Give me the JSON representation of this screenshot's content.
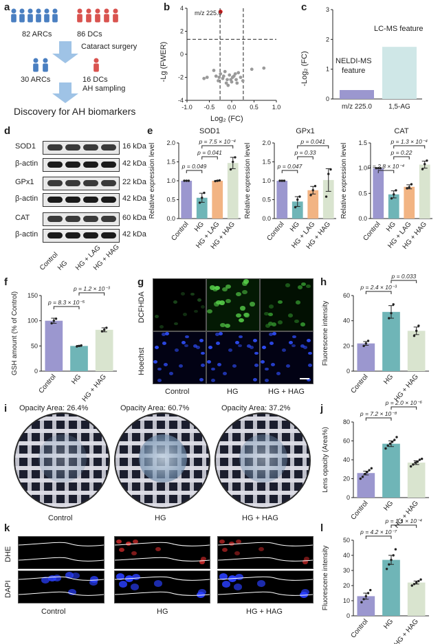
{
  "panel_labels": {
    "a": "a",
    "b": "b",
    "c": "c",
    "d": "d",
    "e": "e",
    "f": "f",
    "g": "g",
    "h": "h",
    "i": "i",
    "j": "j",
    "k": "k",
    "l": "l"
  },
  "panel_a": {
    "arcs_count": "82 ARCs",
    "dcs_count": "86 DCs",
    "surgery": "Cataract surgery",
    "arcs_selected": "30 ARCs",
    "dcs_selected": "16 DCs",
    "sampling": "AH sampling",
    "discovery": "Discovery for AH biomarkers",
    "arc_color": "#4a7fc1",
    "dc_color": "#d9534f"
  },
  "panel_b": {
    "annotation": "m/z 225.0",
    "ylabel": "-Lg (FWER)",
    "xlabel": "Log₂ (FC)"
  },
  "panel_c": {
    "ylabel": "-Log₂ (FC)",
    "bar1_label": "NELDI-MS\nfeature",
    "bar1_line1": "NELDI-MS",
    "bar1_line2": "feature",
    "bar2_label": "LC-MS feature",
    "categories": [
      "m/z 225.0",
      "1,5-AG"
    ]
  },
  "panel_d": {
    "blots": [
      "SOD1",
      "β-actin",
      "GPx1",
      "β-actin",
      "CAT",
      "β-actin"
    ],
    "kda": [
      "16 kDa",
      "42 kDa",
      "22 kDa",
      "42 kDa",
      "60 kDa",
      "42 kDa"
    ],
    "groups": [
      "Control",
      "HG",
      "HG + LAG",
      "HG + HAG"
    ]
  },
  "panel_e": {
    "ylabel": "Relative expression level",
    "titles": [
      "SOD1",
      "GPx1",
      "CAT"
    ],
    "pvals": [
      [
        "p = 0.049",
        "p = 0.041",
        "p = 7.5 × 10⁻⁴"
      ],
      [
        "p = 0.047",
        "p = 0.33",
        "p = 0.041"
      ],
      [
        "p = 2.8 × 10⁻⁴",
        "p = 0.22",
        "p = 1.3 × 10⁻⁴"
      ]
    ]
  },
  "panel_f": {
    "ylabel": "GSH amount (% of Control)",
    "p1": "p = 8.3 × 10⁻⁵",
    "p2": "p = 1.2 × 10⁻³"
  },
  "panel_g": {
    "row1": "DCFHDA",
    "row2": "Hoechst",
    "cols": [
      "Control",
      "HG",
      "HG + HAG"
    ]
  },
  "panel_h": {
    "ylabel": "Fluorescene intensity",
    "p1": "p = 2.4 × 10⁻³",
    "p2": "p = 0.033"
  },
  "panel_i": {
    "titles": [
      "Opacity Area: 26.4%",
      "Opacity Area: 60.7%",
      "Opacity Area: 37.2%"
    ],
    "cols": [
      "Control",
      "HG",
      "HG + HAG"
    ]
  },
  "panel_j": {
    "ylabel": "Lens opacity (Area%)",
    "p1": "p = 7.2 × 10⁻⁸",
    "p2": "p = 2.0 × 10⁻⁶"
  },
  "panel_k": {
    "row1": "DHE",
    "row2": "DAPI",
    "cols": [
      "Control",
      "HG",
      "HG + HAG"
    ]
  },
  "panel_l": {
    "ylabel": "Fluorescene intensity",
    "p1": "p = 4.2 × 10⁻⁷",
    "p2": "p = 1.1 × 10⁻⁴"
  },
  "chart_data": [
    {
      "id": "b",
      "type": "scatter",
      "xlabel": "Log₂ (FC)",
      "ylabel": "-Lg (FWER)",
      "xlim": [
        -1.0,
        1.0
      ],
      "ylim": [
        -4,
        4
      ],
      "xticks": [
        -1.0,
        -0.5,
        0.0,
        0.5,
        1.0
      ],
      "yticks": [
        -4,
        -2,
        0,
        2,
        4
      ],
      "points": [
        [
          -0.25,
          3.7
        ],
        [
          -0.62,
          -2.1
        ],
        [
          -0.55,
          -2.0
        ],
        [
          -0.4,
          -1.4
        ],
        [
          -0.35,
          -1.9
        ],
        [
          -0.3,
          -2.3
        ],
        [
          -0.25,
          -1.7
        ],
        [
          -0.2,
          -2.1
        ],
        [
          -0.15,
          -1.5
        ],
        [
          -0.1,
          -2.2
        ],
        [
          -0.05,
          -1.8
        ],
        [
          0.0,
          -2.4
        ],
        [
          0.05,
          -1.9
        ],
        [
          0.1,
          -2.2
        ],
        [
          0.15,
          -1.6
        ],
        [
          0.2,
          -2.0
        ],
        [
          -0.12,
          -2.5
        ],
        [
          0.02,
          -2.0
        ],
        [
          -0.28,
          -2.0
        ],
        [
          0.08,
          -1.7
        ],
        [
          -0.18,
          -1.9
        ],
        [
          0.12,
          -2.5
        ],
        [
          0.25,
          -2.3
        ],
        [
          0.45,
          -1.3
        ],
        [
          0.72,
          -1.2
        ],
        [
          -0.08,
          -2.7
        ],
        [
          -0.02,
          -2.2
        ]
      ],
      "highlight": {
        "x": -0.25,
        "y": 3.7,
        "color": "#e02020"
      },
      "hlines": [
        1.3
      ],
      "vlines": [
        -0.26,
        0.26
      ]
    },
    {
      "id": "c",
      "type": "bar",
      "categories": [
        "m/z 225.0",
        "1,5-AG"
      ],
      "values": [
        0.3,
        1.75
      ],
      "ylim": [
        0,
        3
      ],
      "yticks": [
        0,
        1,
        2,
        3
      ],
      "ylabel": "-Log₂ (FC)",
      "colors": [
        "#9b97cf",
        "#cfe7e7"
      ]
    },
    {
      "id": "e1",
      "type": "bar",
      "title": "SOD1",
      "categories": [
        "Control",
        "HG",
        "HG + LAG",
        "HG + HAG"
      ],
      "values": [
        1.0,
        0.55,
        1.0,
        1.47
      ],
      "errors": [
        0.0,
        0.12,
        0.01,
        0.15
      ],
      "points": [
        [
          1.0,
          1.0,
          1.0
        ],
        [
          0.42,
          0.55,
          0.68
        ],
        [
          0.99,
          1.0,
          1.01
        ],
        [
          1.3,
          1.5,
          1.62
        ]
      ],
      "ylim": [
        0,
        2.0
      ],
      "yticks": [
        0,
        0.5,
        1.0,
        1.5,
        2.0
      ]
    },
    {
      "id": "e2",
      "type": "bar",
      "title": "GPx1",
      "categories": [
        "Control",
        "HG",
        "HG + LAG",
        "HG + HAG"
      ],
      "values": [
        1.0,
        0.45,
        0.75,
        1.02
      ],
      "errors": [
        0.0,
        0.13,
        0.1,
        0.3
      ],
      "points": [
        [
          1.0,
          1.0,
          1.0
        ],
        [
          0.3,
          0.5,
          0.58
        ],
        [
          0.62,
          0.75,
          0.86
        ],
        [
          0.58,
          1.18,
          1.3
        ]
      ],
      "ylim": [
        0,
        2.0
      ],
      "yticks": [
        0,
        0.5,
        1.0,
        1.5,
        2.0
      ]
    },
    {
      "id": "e3",
      "type": "bar",
      "title": "CAT",
      "categories": [
        "Control",
        "HG",
        "HG + LAG",
        "HG + HAG"
      ],
      "values": [
        1.0,
        0.48,
        0.63,
        1.07
      ],
      "errors": [
        0.0,
        0.07,
        0.04,
        0.07
      ],
      "points": [
        [
          1.0,
          1.0,
          1.0
        ],
        [
          0.4,
          0.48,
          0.56
        ],
        [
          0.6,
          0.62,
          0.68
        ],
        [
          0.98,
          1.08,
          1.15
        ]
      ],
      "ylim": [
        0,
        1.5
      ],
      "yticks": [
        0,
        0.5,
        1.0,
        1.5
      ]
    },
    {
      "id": "f",
      "type": "bar",
      "categories": [
        "Control",
        "HG",
        "HG + HAG"
      ],
      "values": [
        100,
        50,
        82
      ],
      "errors": [
        5,
        1,
        4
      ],
      "points": [
        [
          95,
          100,
          104
        ],
        [
          49,
          50,
          51
        ],
        [
          79,
          82,
          86
        ]
      ],
      "ylim": [
        0,
        150
      ],
      "yticks": [
        0,
        50,
        100,
        150
      ],
      "ylabel": "GSH amount (% of Control)"
    },
    {
      "id": "h",
      "type": "bar",
      "categories": [
        "Control",
        "HG",
        "HG + HAG"
      ],
      "values": [
        22,
        47,
        32
      ],
      "errors": [
        1.5,
        5,
        3
      ],
      "points": [
        [
          20,
          22,
          24
        ],
        [
          42,
          46,
          53
        ],
        [
          28,
          32,
          36
        ]
      ],
      "ylim": [
        0,
        60
      ],
      "yticks": [
        0,
        20,
        40,
        60
      ],
      "ylabel": "Fluorescene intensity"
    },
    {
      "id": "j",
      "type": "bar",
      "categories": [
        "Control",
        "HG",
        "HG + HAG"
      ],
      "values": [
        26,
        57,
        37
      ],
      "errors": [
        2,
        3,
        2
      ],
      "points": [
        [
          20,
          22,
          25,
          27,
          29,
          31
        ],
        [
          52,
          55,
          57,
          59,
          61,
          64
        ],
        [
          33,
          35,
          37,
          38,
          40,
          41
        ]
      ],
      "ylim": [
        0,
        80
      ],
      "yticks": [
        0,
        20,
        40,
        60,
        80
      ],
      "ylabel": "Lens opacity (Area%)"
    },
    {
      "id": "l",
      "type": "bar",
      "categories": [
        "Control",
        "HG",
        "HG + HAG"
      ],
      "values": [
        13,
        37,
        22
      ],
      "errors": [
        2,
        3,
        1
      ],
      "points": [
        [
          9,
          11,
          13,
          15,
          17
        ],
        [
          31,
          34,
          37,
          40,
          44
        ],
        [
          20,
          21,
          22,
          23,
          24
        ]
      ],
      "ylim": [
        0,
        50
      ],
      "yticks": [
        0,
        10,
        20,
        30,
        40,
        50
      ],
      "ylabel": "Fluorescene intensity"
    }
  ]
}
